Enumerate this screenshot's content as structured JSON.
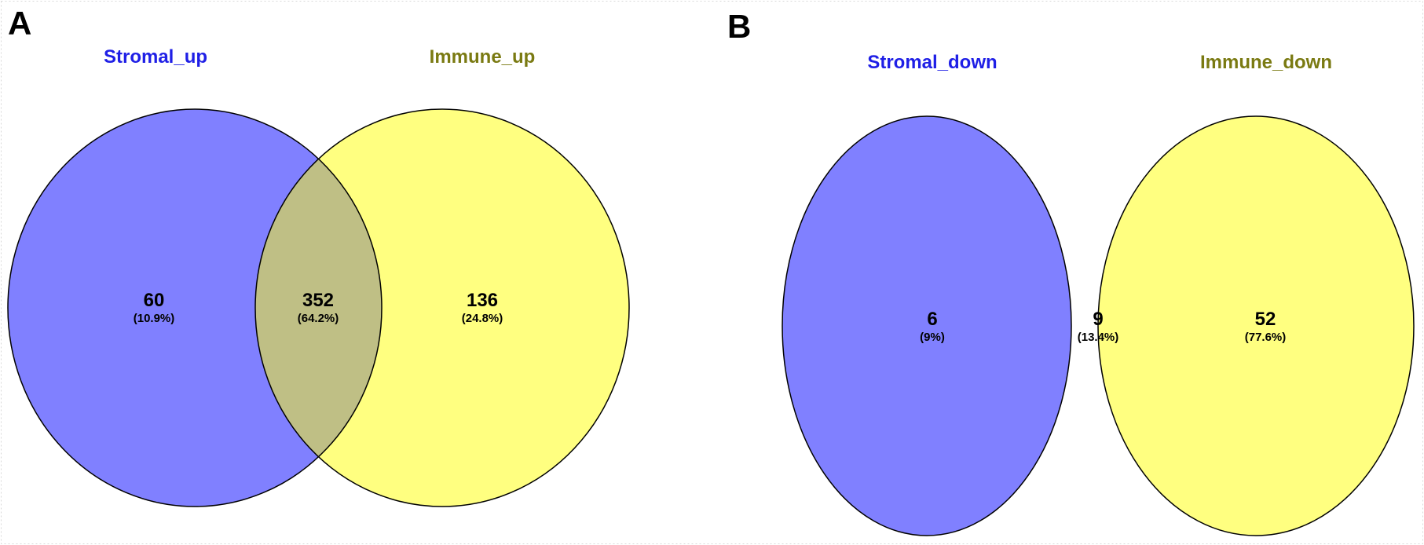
{
  "figures": [
    {
      "letter": "A",
      "left_set": {
        "label": "Stromal_up",
        "color": "#1f1fe6"
      },
      "right_set": {
        "label": "Immune_up",
        "color": "#7a7a12"
      },
      "regions": {
        "left_only": {
          "count": "60",
          "percent": "(10.9%)"
        },
        "overlap": {
          "count": "352",
          "percent": "(64.2%)"
        },
        "right_only": {
          "count": "136",
          "percent": "(24.8%)"
        }
      }
    },
    {
      "letter": "B",
      "left_set": {
        "label": "Stromal_down",
        "color": "#1f1fe6"
      },
      "right_set": {
        "label": "Immune_down",
        "color": "#7a7a12"
      },
      "regions": {
        "left_only": {
          "count": "6",
          "percent": "(9%)"
        },
        "overlap": {
          "count": "9",
          "percent": "(13.4%)"
        },
        "right_only": {
          "count": "52",
          "percent": "(77.6%)"
        }
      }
    }
  ],
  "fill_colors": {
    "left": "#8080ff",
    "right": "#ffff80",
    "overlap": "#bfbf85"
  }
}
